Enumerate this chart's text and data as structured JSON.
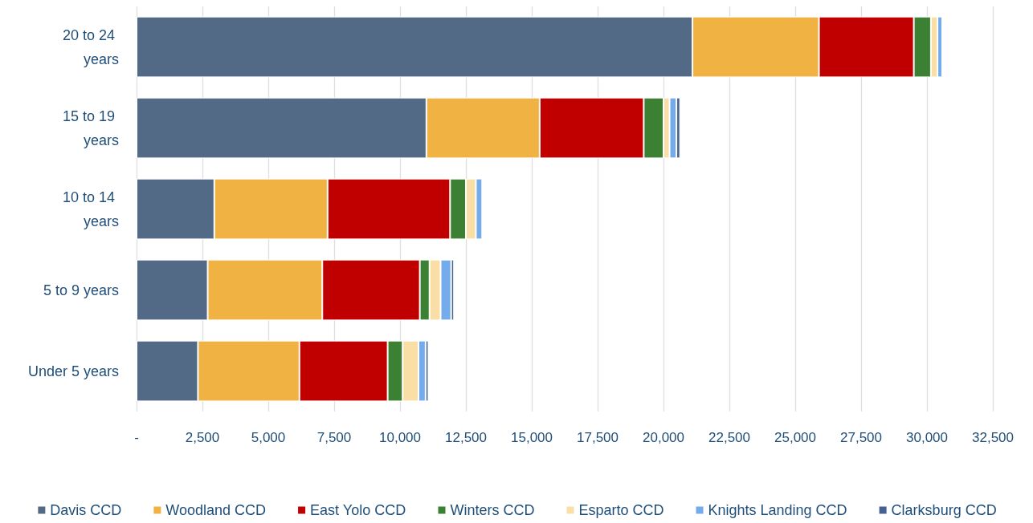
{
  "chart_data": {
    "type": "bar",
    "orientation": "horizontal",
    "stacked": true,
    "categories": [
      "20 to 24 years",
      "15 to 19 years",
      "10 to 14 years",
      "5 to 9 years",
      "Under 5 years"
    ],
    "series": [
      {
        "name": "Davis CCD",
        "color": "#536a87",
        "values": [
          21100,
          11000,
          2950,
          2700,
          2330
        ]
      },
      {
        "name": "Woodland CCD",
        "color": "#f0b243",
        "values": [
          4800,
          4300,
          4300,
          4350,
          3850
        ]
      },
      {
        "name": "East Yolo CCD",
        "color": "#c00000",
        "values": [
          3600,
          3950,
          4650,
          3700,
          3350
        ]
      },
      {
        "name": "Winters CCD",
        "color": "#3c8033",
        "values": [
          650,
          750,
          600,
          370,
          570
        ]
      },
      {
        "name": "Esparto CCD",
        "color": "#f9dea6",
        "values": [
          250,
          230,
          380,
          420,
          600
        ]
      },
      {
        "name": "Knights Landing CCD",
        "color": "#73abeb",
        "values": [
          180,
          260,
          240,
          400,
          270
        ]
      },
      {
        "name": "Clarksburg CCD",
        "color": "#44618f",
        "values": [
          null,
          140,
          null,
          110,
          110
        ]
      }
    ],
    "xlim": [
      0,
      32500
    ],
    "xticks": [
      {
        "value": 0,
        "label": "-"
      },
      {
        "value": 2500,
        "label": "2,500"
      },
      {
        "value": 5000,
        "label": "5,000"
      },
      {
        "value": 7500,
        "label": "7,500"
      },
      {
        "value": 10000,
        "label": "10,000"
      },
      {
        "value": 12500,
        "label": "12,500"
      },
      {
        "value": 15000,
        "label": "15,000"
      },
      {
        "value": 17500,
        "label": "17,500"
      },
      {
        "value": 20000,
        "label": "20,000"
      },
      {
        "value": 22500,
        "label": "22,500"
      },
      {
        "value": 25000,
        "label": "25,000"
      },
      {
        "value": 27500,
        "label": "27,500"
      },
      {
        "value": 30000,
        "label": "30,000"
      },
      {
        "value": 32500,
        "label": "32,500"
      }
    ],
    "grid": "x",
    "legend": "bottom"
  }
}
